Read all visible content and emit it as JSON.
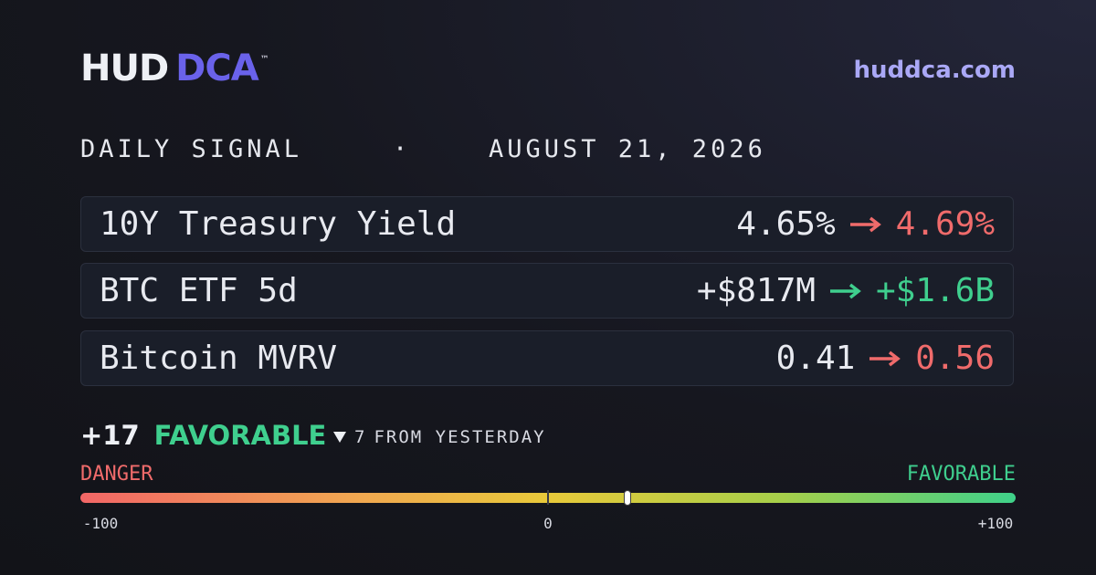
{
  "header": {
    "brand": "HUD",
    "brand_accent": "DCA",
    "trademark": "™",
    "url": "huddca.com"
  },
  "signal": {
    "label": "DAILY SIGNAL",
    "separator": "·",
    "date": "AUGUST 21, 2026"
  },
  "metrics": [
    {
      "label": "10Y Treasury Yield",
      "from": "4.65%",
      "to": "4.69%",
      "color": "#f06b6b"
    },
    {
      "label": "BTC ETF 5d",
      "from": "+$817M",
      "to": "+$1.6B",
      "color": "#3fcf8e"
    },
    {
      "label": "Bitcoin MVRV",
      "from": "0.41",
      "to": "0.56",
      "color": "#f06b6b"
    }
  ],
  "gauge": {
    "score": {
      "value": 17,
      "label": "+17"
    },
    "rating": "FAVORABLE",
    "rating_color": "#3fcf8e",
    "delta": 7,
    "delta_text": "FROM YESTERDAY",
    "left_label": "DANGER",
    "right_label": "FAVORABLE",
    "min": -100,
    "max": 100,
    "ticks": [
      -100,
      0,
      {
        "value": 100,
        "label": "+100"
      }
    ]
  }
}
